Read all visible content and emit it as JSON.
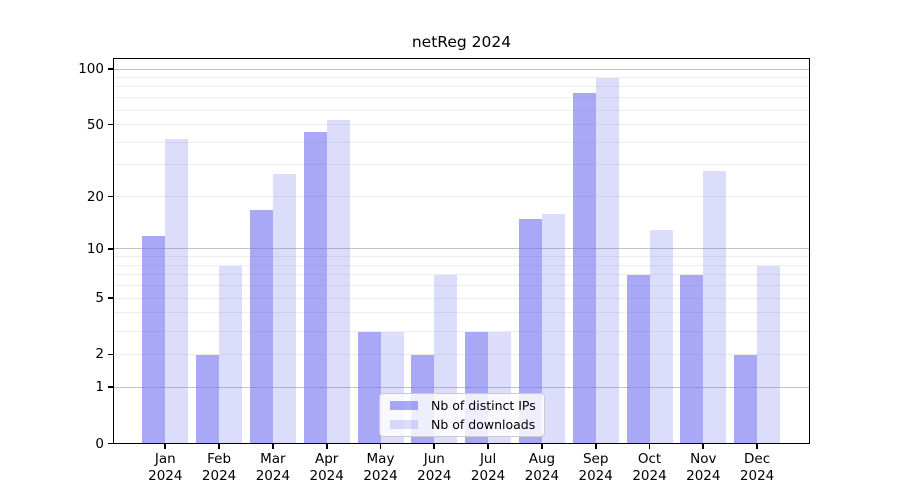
{
  "title": "netReg 2024",
  "chart_data": {
    "type": "bar",
    "title": "netReg 2024",
    "categories": [
      "Jan",
      "Feb",
      "Mar",
      "Apr",
      "May",
      "Jun",
      "Jul",
      "Aug",
      "Sep",
      "Oct",
      "Nov",
      "Dec"
    ],
    "x_year_label": "2024",
    "series": [
      {
        "name": "Nb of distinct IPs",
        "color": "rgba(110,110,240,0.60)",
        "composited_color": "#a8a8f6",
        "values": [
          12,
          2,
          17,
          46,
          3,
          2,
          3,
          15,
          75,
          7,
          7,
          2
        ]
      },
      {
        "name": "Nb of downloads",
        "color": "rgba(110,110,240,0.24)",
        "composited_color": "#dcdcf9",
        "values": [
          42,
          8,
          27,
          53,
          3,
          7,
          3,
          16,
          90,
          13,
          28,
          8
        ]
      }
    ],
    "yscale": "log1p",
    "ylim": [
      0,
      115
    ],
    "y_ticks": [
      0,
      1,
      2,
      5,
      10,
      20,
      50,
      100
    ],
    "y_major_gridlines": [
      1,
      10,
      100
    ],
    "y_minor_gridlines": [
      2,
      3,
      4,
      5,
      6,
      7,
      8,
      9,
      20,
      30,
      40,
      50,
      60,
      70,
      80,
      90
    ],
    "grid": "on",
    "legend_position": "lower center",
    "xlabel": "",
    "ylabel": ""
  }
}
